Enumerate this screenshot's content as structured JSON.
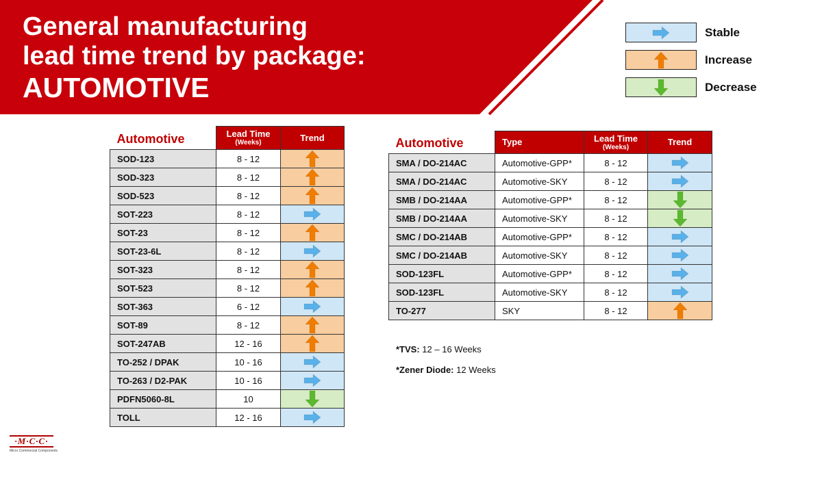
{
  "title": {
    "line1": "General manufacturing",
    "line2": "lead time trend by package:",
    "line3": "AUTOMOTIVE"
  },
  "colors": {
    "banner_red": "#c8000a",
    "header_red": "#c00000",
    "stable_bg": "#cfe6f6",
    "increase_bg": "#f8cd9f",
    "decrease_bg": "#d6ecc4",
    "stable_arrow": "#5ab0e8",
    "increase_arrow": "#f07d00",
    "decrease_arrow": "#5cb82e"
  },
  "legend": [
    {
      "trend": "stable",
      "icon": "right-arrow-icon",
      "label": "Stable"
    },
    {
      "trend": "increase",
      "icon": "up-arrow-icon",
      "label": "Increase"
    },
    {
      "trend": "decrease",
      "icon": "down-arrow-icon",
      "label": "Decrease"
    }
  ],
  "table1": {
    "section": "Automotive",
    "header_lead": "Lead Time",
    "header_lead_sub": "(Weeks)",
    "header_trend": "Trend",
    "rows": [
      {
        "pkg": "SOD-123",
        "lead": "8 - 12",
        "trend": "increase"
      },
      {
        "pkg": "SOD-323",
        "lead": "8 - 12",
        "trend": "increase"
      },
      {
        "pkg": "SOD-523",
        "lead": "8 - 12",
        "trend": "increase"
      },
      {
        "pkg": "SOT-223",
        "lead": "8 - 12",
        "trend": "stable"
      },
      {
        "pkg": "SOT-23",
        "lead": "8 - 12",
        "trend": "increase"
      },
      {
        "pkg": "SOT-23-6L",
        "lead": "8 - 12",
        "trend": "stable"
      },
      {
        "pkg": "SOT-323",
        "lead": "8 - 12",
        "trend": "increase"
      },
      {
        "pkg": "SOT-523",
        "lead": "8 - 12",
        "trend": "increase"
      },
      {
        "pkg": "SOT-363",
        "lead": "6 - 12",
        "trend": "stable"
      },
      {
        "pkg": "SOT-89",
        "lead": "8 - 12",
        "trend": "increase"
      },
      {
        "pkg": "SOT-247AB",
        "lead": "12 - 16",
        "trend": "increase"
      },
      {
        "pkg": "TO-252 / DPAK",
        "lead": "10 - 16",
        "trend": "stable"
      },
      {
        "pkg": "TO-263 / D2-PAK",
        "lead": "10 - 16",
        "trend": "stable"
      },
      {
        "pkg": "PDFN5060-8L",
        "lead": "10",
        "trend": "decrease"
      },
      {
        "pkg": "TOLL",
        "lead": "12 - 16",
        "trend": "stable"
      }
    ]
  },
  "table2": {
    "section": "Automotive",
    "header_type": "Type",
    "header_lead": "Lead Time",
    "header_lead_sub": "(Weeks)",
    "header_trend": "Trend",
    "rows": [
      {
        "pkg": "SMA / DO-214AC",
        "type": "Automotive-GPP*",
        "lead": "8 - 12",
        "trend": "stable"
      },
      {
        "pkg": "SMA / DO-214AC",
        "type": "Automotive-SKY",
        "lead": "8 - 12",
        "trend": "stable"
      },
      {
        "pkg": "SMB / DO-214AA",
        "type": "Automotive-GPP*",
        "lead": "8 - 12",
        "trend": "decrease"
      },
      {
        "pkg": "SMB / DO-214AA",
        "type": "Automotive-SKY",
        "lead": "8 - 12",
        "trend": "decrease"
      },
      {
        "pkg": "SMC / DO-214AB",
        "type": "Automotive-GPP*",
        "lead": "8 - 12",
        "trend": "stable"
      },
      {
        "pkg": "SMC / DO-214AB",
        "type": "Automotive-SKY",
        "lead": "8 - 12",
        "trend": "stable"
      },
      {
        "pkg": "SOD-123FL",
        "type": "Automotive-GPP*",
        "lead": "8 - 12",
        "trend": "stable"
      },
      {
        "pkg": "SOD-123FL",
        "type": "Automotive-SKY",
        "lead": "8 - 12",
        "trend": "stable"
      },
      {
        "pkg": "TO-277",
        "type": "SKY",
        "lead": "8 - 12",
        "trend": "increase"
      }
    ]
  },
  "notes": [
    {
      "label": "*TVS:",
      "value": "12 – 16 Weeks"
    },
    {
      "label": "*Zener Diode:",
      "value": "12 Weeks"
    }
  ],
  "logo": {
    "mark": "·M·C·C·",
    "subtitle": "Micro Commercial Components"
  }
}
